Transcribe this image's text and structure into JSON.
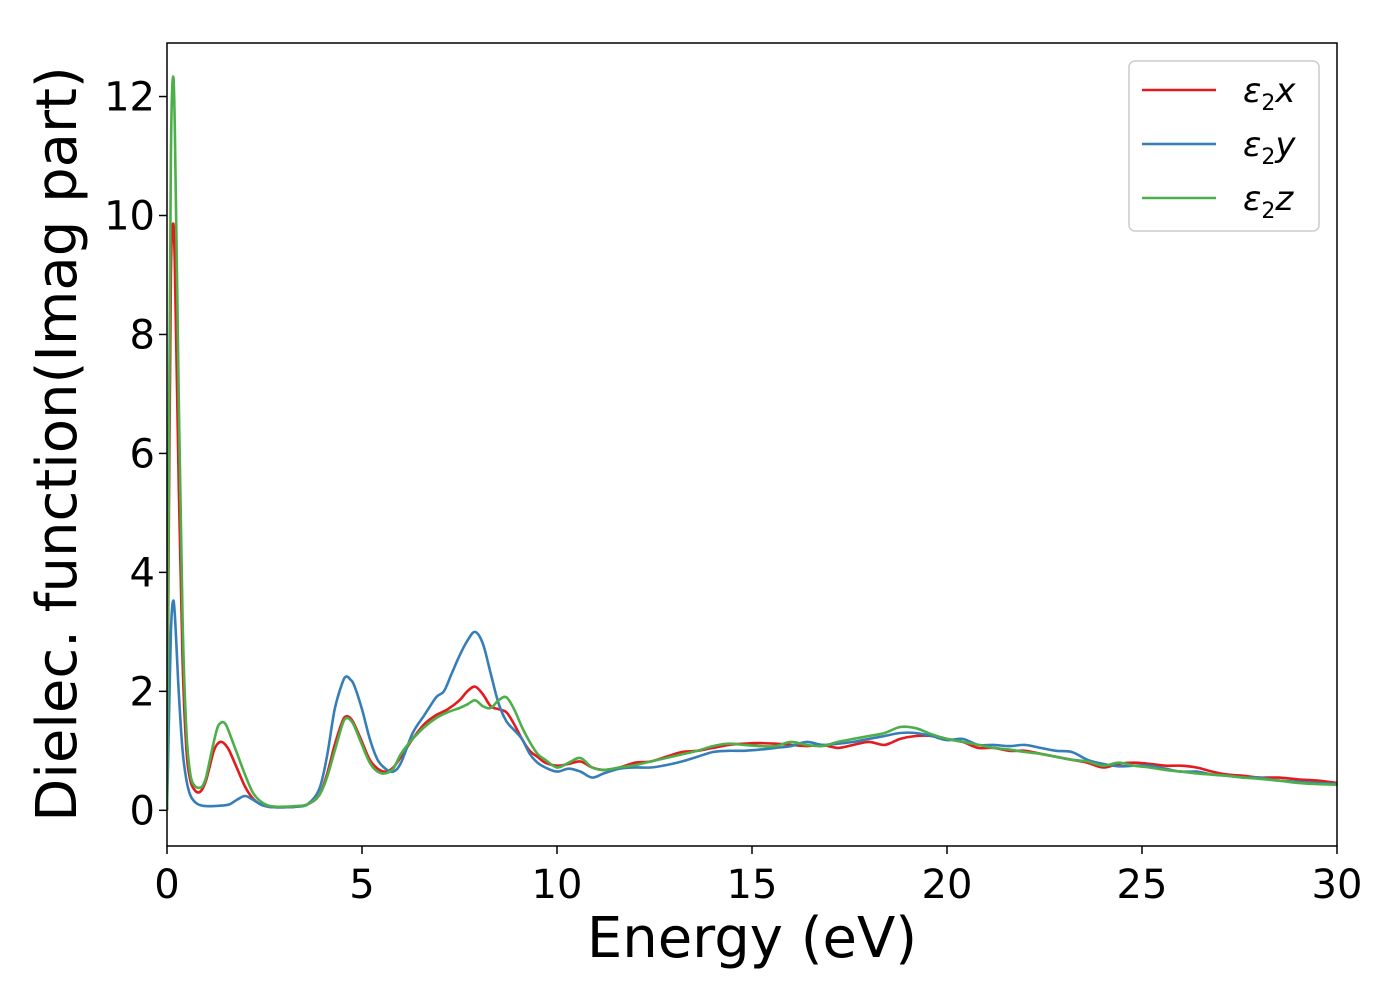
{
  "chart_data": {
    "type": "line",
    "title": "",
    "xlabel": "Energy (eV)",
    "ylabel": "Dielec. function(Imag part)",
    "xlim": [
      0,
      30
    ],
    "ylim": [
      -0.6,
      12.9
    ],
    "xticks": [
      0,
      5,
      10,
      15,
      20,
      25,
      30
    ],
    "yticks": [
      0,
      2,
      4,
      6,
      8,
      10,
      12
    ],
    "grid": false,
    "legend_position": "top-right",
    "series": [
      {
        "name": "x",
        "label_main": "ε",
        "label_sub": "2",
        "label_suffix": "x",
        "color": "#e41a1c",
        "x": [
          0,
          0.05,
          0.1,
          0.15,
          0.2,
          0.3,
          0.4,
          0.5,
          0.6,
          0.7,
          0.8,
          0.9,
          1.0,
          1.1,
          1.2,
          1.3,
          1.4,
          1.5,
          1.6,
          1.8,
          2.0,
          2.2,
          2.4,
          2.6,
          2.8,
          3.0,
          3.3,
          3.6,
          3.9,
          4.1,
          4.3,
          4.5,
          4.6,
          4.7,
          4.8,
          5.0,
          5.2,
          5.4,
          5.6,
          5.8,
          6.0,
          6.3,
          6.6,
          6.9,
          7.2,
          7.5,
          7.7,
          7.9,
          8.1,
          8.3,
          8.5,
          8.7,
          8.9,
          9.1,
          9.3,
          9.5,
          9.7,
          10.0,
          10.3,
          10.6,
          10.9,
          11.2,
          11.6,
          12.0,
          12.4,
          12.8,
          13.2,
          13.6,
          14.0,
          14.4,
          14.8,
          15.2,
          15.6,
          16.0,
          16.4,
          16.8,
          17.2,
          17.6,
          18.0,
          18.4,
          18.8,
          19.2,
          19.6,
          20.0,
          20.4,
          20.8,
          21.2,
          21.6,
          22.0,
          22.4,
          22.8,
          23.2,
          23.6,
          24.0,
          24.4,
          24.8,
          25.2,
          25.6,
          26.0,
          26.4,
          26.8,
          27.2,
          27.6,
          28.0,
          28.5,
          29.0,
          29.5,
          30.0
        ],
        "y": [
          0,
          5.0,
          9.0,
          9.85,
          9.2,
          5.5,
          2.5,
          1.0,
          0.5,
          0.35,
          0.3,
          0.35,
          0.5,
          0.75,
          1.0,
          1.12,
          1.15,
          1.1,
          1.0,
          0.7,
          0.4,
          0.2,
          0.1,
          0.06,
          0.05,
          0.05,
          0.06,
          0.1,
          0.25,
          0.6,
          1.1,
          1.5,
          1.58,
          1.55,
          1.45,
          1.15,
          0.85,
          0.7,
          0.65,
          0.72,
          0.9,
          1.2,
          1.45,
          1.6,
          1.7,
          1.85,
          2.0,
          2.08,
          1.95,
          1.75,
          1.7,
          1.65,
          1.45,
          1.2,
          1.0,
          0.9,
          0.8,
          0.75,
          0.78,
          0.82,
          0.72,
          0.68,
          0.72,
          0.8,
          0.82,
          0.9,
          0.98,
          1.0,
          1.05,
          1.1,
          1.12,
          1.13,
          1.12,
          1.1,
          1.08,
          1.1,
          1.05,
          1.1,
          1.15,
          1.1,
          1.2,
          1.25,
          1.25,
          1.2,
          1.15,
          1.05,
          1.05,
          1.0,
          1.0,
          0.95,
          0.9,
          0.85,
          0.8,
          0.72,
          0.78,
          0.8,
          0.78,
          0.75,
          0.75,
          0.72,
          0.65,
          0.6,
          0.58,
          0.55,
          0.55,
          0.52,
          0.5,
          0.46
        ]
      },
      {
        "name": "y",
        "label_main": "ε",
        "label_sub": "2",
        "label_suffix": "y",
        "color": "#377eb8",
        "x": [
          0,
          0.05,
          0.1,
          0.15,
          0.2,
          0.3,
          0.4,
          0.5,
          0.6,
          0.7,
          0.8,
          0.9,
          1.0,
          1.2,
          1.4,
          1.6,
          1.8,
          2.0,
          2.2,
          2.4,
          2.6,
          2.8,
          3.0,
          3.3,
          3.6,
          3.9,
          4.1,
          4.3,
          4.5,
          4.6,
          4.7,
          4.8,
          5.0,
          5.2,
          5.4,
          5.6,
          5.8,
          6.0,
          6.3,
          6.6,
          6.9,
          7.1,
          7.3,
          7.5,
          7.7,
          7.9,
          8.1,
          8.3,
          8.5,
          8.7,
          8.9,
          9.1,
          9.3,
          9.5,
          9.7,
          10.0,
          10.3,
          10.6,
          10.9,
          11.2,
          11.6,
          12.0,
          12.4,
          12.8,
          13.2,
          13.6,
          14.0,
          14.4,
          14.8,
          15.2,
          15.6,
          16.0,
          16.4,
          16.8,
          17.2,
          17.6,
          18.0,
          18.4,
          18.8,
          19.2,
          19.6,
          20.0,
          20.4,
          20.8,
          21.2,
          21.6,
          22.0,
          22.4,
          22.8,
          23.2,
          23.6,
          24.0,
          24.4,
          24.8,
          25.2,
          25.6,
          26.0,
          26.4,
          26.8,
          27.2,
          27.6,
          28.0,
          28.5,
          29.0,
          29.5,
          30.0
        ],
        "y": [
          0,
          1.5,
          3.0,
          3.5,
          3.3,
          2.0,
          1.0,
          0.5,
          0.25,
          0.15,
          0.1,
          0.08,
          0.07,
          0.07,
          0.08,
          0.1,
          0.18,
          0.24,
          0.18,
          0.1,
          0.06,
          0.05,
          0.05,
          0.06,
          0.1,
          0.35,
          0.9,
          1.7,
          2.15,
          2.25,
          2.2,
          2.1,
          1.7,
          1.2,
          0.85,
          0.7,
          0.65,
          0.8,
          1.3,
          1.6,
          1.9,
          2.0,
          2.3,
          2.6,
          2.85,
          3.0,
          2.8,
          2.3,
          1.8,
          1.5,
          1.35,
          1.2,
          0.95,
          0.8,
          0.72,
          0.65,
          0.7,
          0.65,
          0.55,
          0.62,
          0.7,
          0.72,
          0.72,
          0.76,
          0.82,
          0.9,
          0.98,
          1.0,
          1.0,
          1.02,
          1.05,
          1.08,
          1.15,
          1.1,
          1.12,
          1.15,
          1.2,
          1.25,
          1.3,
          1.3,
          1.25,
          1.18,
          1.2,
          1.1,
          1.1,
          1.08,
          1.1,
          1.05,
          1.0,
          0.98,
          0.85,
          0.78,
          0.74,
          0.75,
          0.75,
          0.7,
          0.65,
          0.65,
          0.6,
          0.58,
          0.55,
          0.55,
          0.5,
          0.48,
          0.46,
          0.44
        ]
      },
      {
        "name": "z",
        "label_main": "ε",
        "label_sub": "2",
        "label_suffix": "z",
        "color": "#4daf4a",
        "x": [
          0,
          0.05,
          0.1,
          0.15,
          0.2,
          0.3,
          0.4,
          0.5,
          0.6,
          0.7,
          0.8,
          0.9,
          1.0,
          1.1,
          1.2,
          1.3,
          1.4,
          1.5,
          1.6,
          1.8,
          2.0,
          2.2,
          2.4,
          2.6,
          2.8,
          3.0,
          3.3,
          3.6,
          3.9,
          4.1,
          4.3,
          4.5,
          4.6,
          4.7,
          4.8,
          5.0,
          5.2,
          5.4,
          5.6,
          5.8,
          6.0,
          6.3,
          6.6,
          6.9,
          7.2,
          7.5,
          7.7,
          7.9,
          8.1,
          8.3,
          8.5,
          8.7,
          8.9,
          9.1,
          9.3,
          9.5,
          9.7,
          10.0,
          10.3,
          10.6,
          10.9,
          11.2,
          11.6,
          12.0,
          12.4,
          12.8,
          13.2,
          13.6,
          14.0,
          14.4,
          14.8,
          15.2,
          15.6,
          16.0,
          16.4,
          16.8,
          17.2,
          17.6,
          18.0,
          18.4,
          18.8,
          19.2,
          19.6,
          20.0,
          20.4,
          20.8,
          21.2,
          21.6,
          22.0,
          22.4,
          22.8,
          23.2,
          23.6,
          24.0,
          24.4,
          24.8,
          25.2,
          25.6,
          26.0,
          26.4,
          26.8,
          27.2,
          27.6,
          28.0,
          28.5,
          29.0,
          29.5,
          30.0
        ],
        "y": [
          0,
          6.0,
          11.0,
          12.3,
          11.5,
          7.0,
          3.2,
          1.3,
          0.6,
          0.42,
          0.38,
          0.4,
          0.55,
          0.85,
          1.15,
          1.4,
          1.48,
          1.45,
          1.3,
          0.95,
          0.6,
          0.3,
          0.15,
          0.08,
          0.06,
          0.06,
          0.07,
          0.1,
          0.25,
          0.55,
          1.0,
          1.45,
          1.55,
          1.52,
          1.42,
          1.1,
          0.8,
          0.65,
          0.62,
          0.7,
          0.95,
          1.2,
          1.4,
          1.55,
          1.65,
          1.72,
          1.78,
          1.85,
          1.75,
          1.72,
          1.85,
          1.9,
          1.7,
          1.4,
          1.15,
          0.95,
          0.85,
          0.72,
          0.8,
          0.88,
          0.72,
          0.68,
          0.72,
          0.76,
          0.82,
          0.88,
          0.94,
          1.0,
          1.08,
          1.12,
          1.1,
          1.08,
          1.08,
          1.15,
          1.1,
          1.08,
          1.15,
          1.2,
          1.25,
          1.3,
          1.4,
          1.38,
          1.28,
          1.2,
          1.15,
          1.1,
          1.05,
          1.02,
          0.98,
          0.95,
          0.9,
          0.85,
          0.82,
          0.75,
          0.8,
          0.75,
          0.72,
          0.68,
          0.65,
          0.62,
          0.6,
          0.58,
          0.55,
          0.53,
          0.5,
          0.46,
          0.44,
          0.43
        ]
      }
    ]
  }
}
